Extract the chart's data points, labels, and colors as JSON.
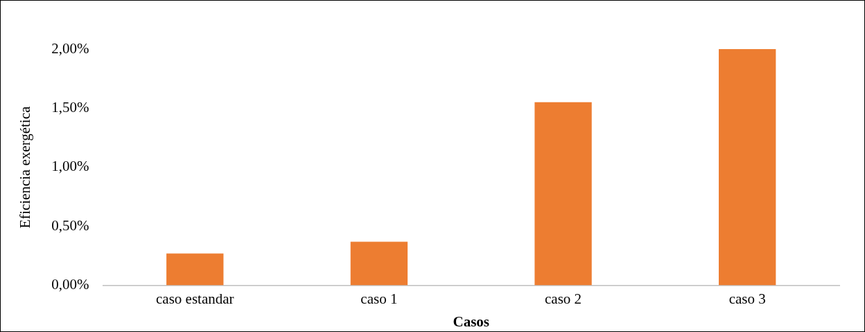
{
  "chart_data": {
    "type": "bar",
    "xlabel": "Casos",
    "ylabel": "Eficiencia exergética",
    "categories": [
      "caso estandar",
      "caso 1",
      "caso 2",
      "caso 3"
    ],
    "values": [
      0.27,
      0.37,
      1.55,
      2.0
    ],
    "color": "#ed7d31",
    "ylim": [
      0,
      2
    ],
    "yticks": [
      {
        "value": 0,
        "label": "0,00%"
      },
      {
        "value": 0.5,
        "label": "0,50%"
      },
      {
        "value": 1,
        "label": "1,00%"
      },
      {
        "value": 1.5,
        "label": "1,50%"
      },
      {
        "value": 2,
        "label": "2,00%"
      }
    ],
    "grid": false,
    "legend": false
  }
}
